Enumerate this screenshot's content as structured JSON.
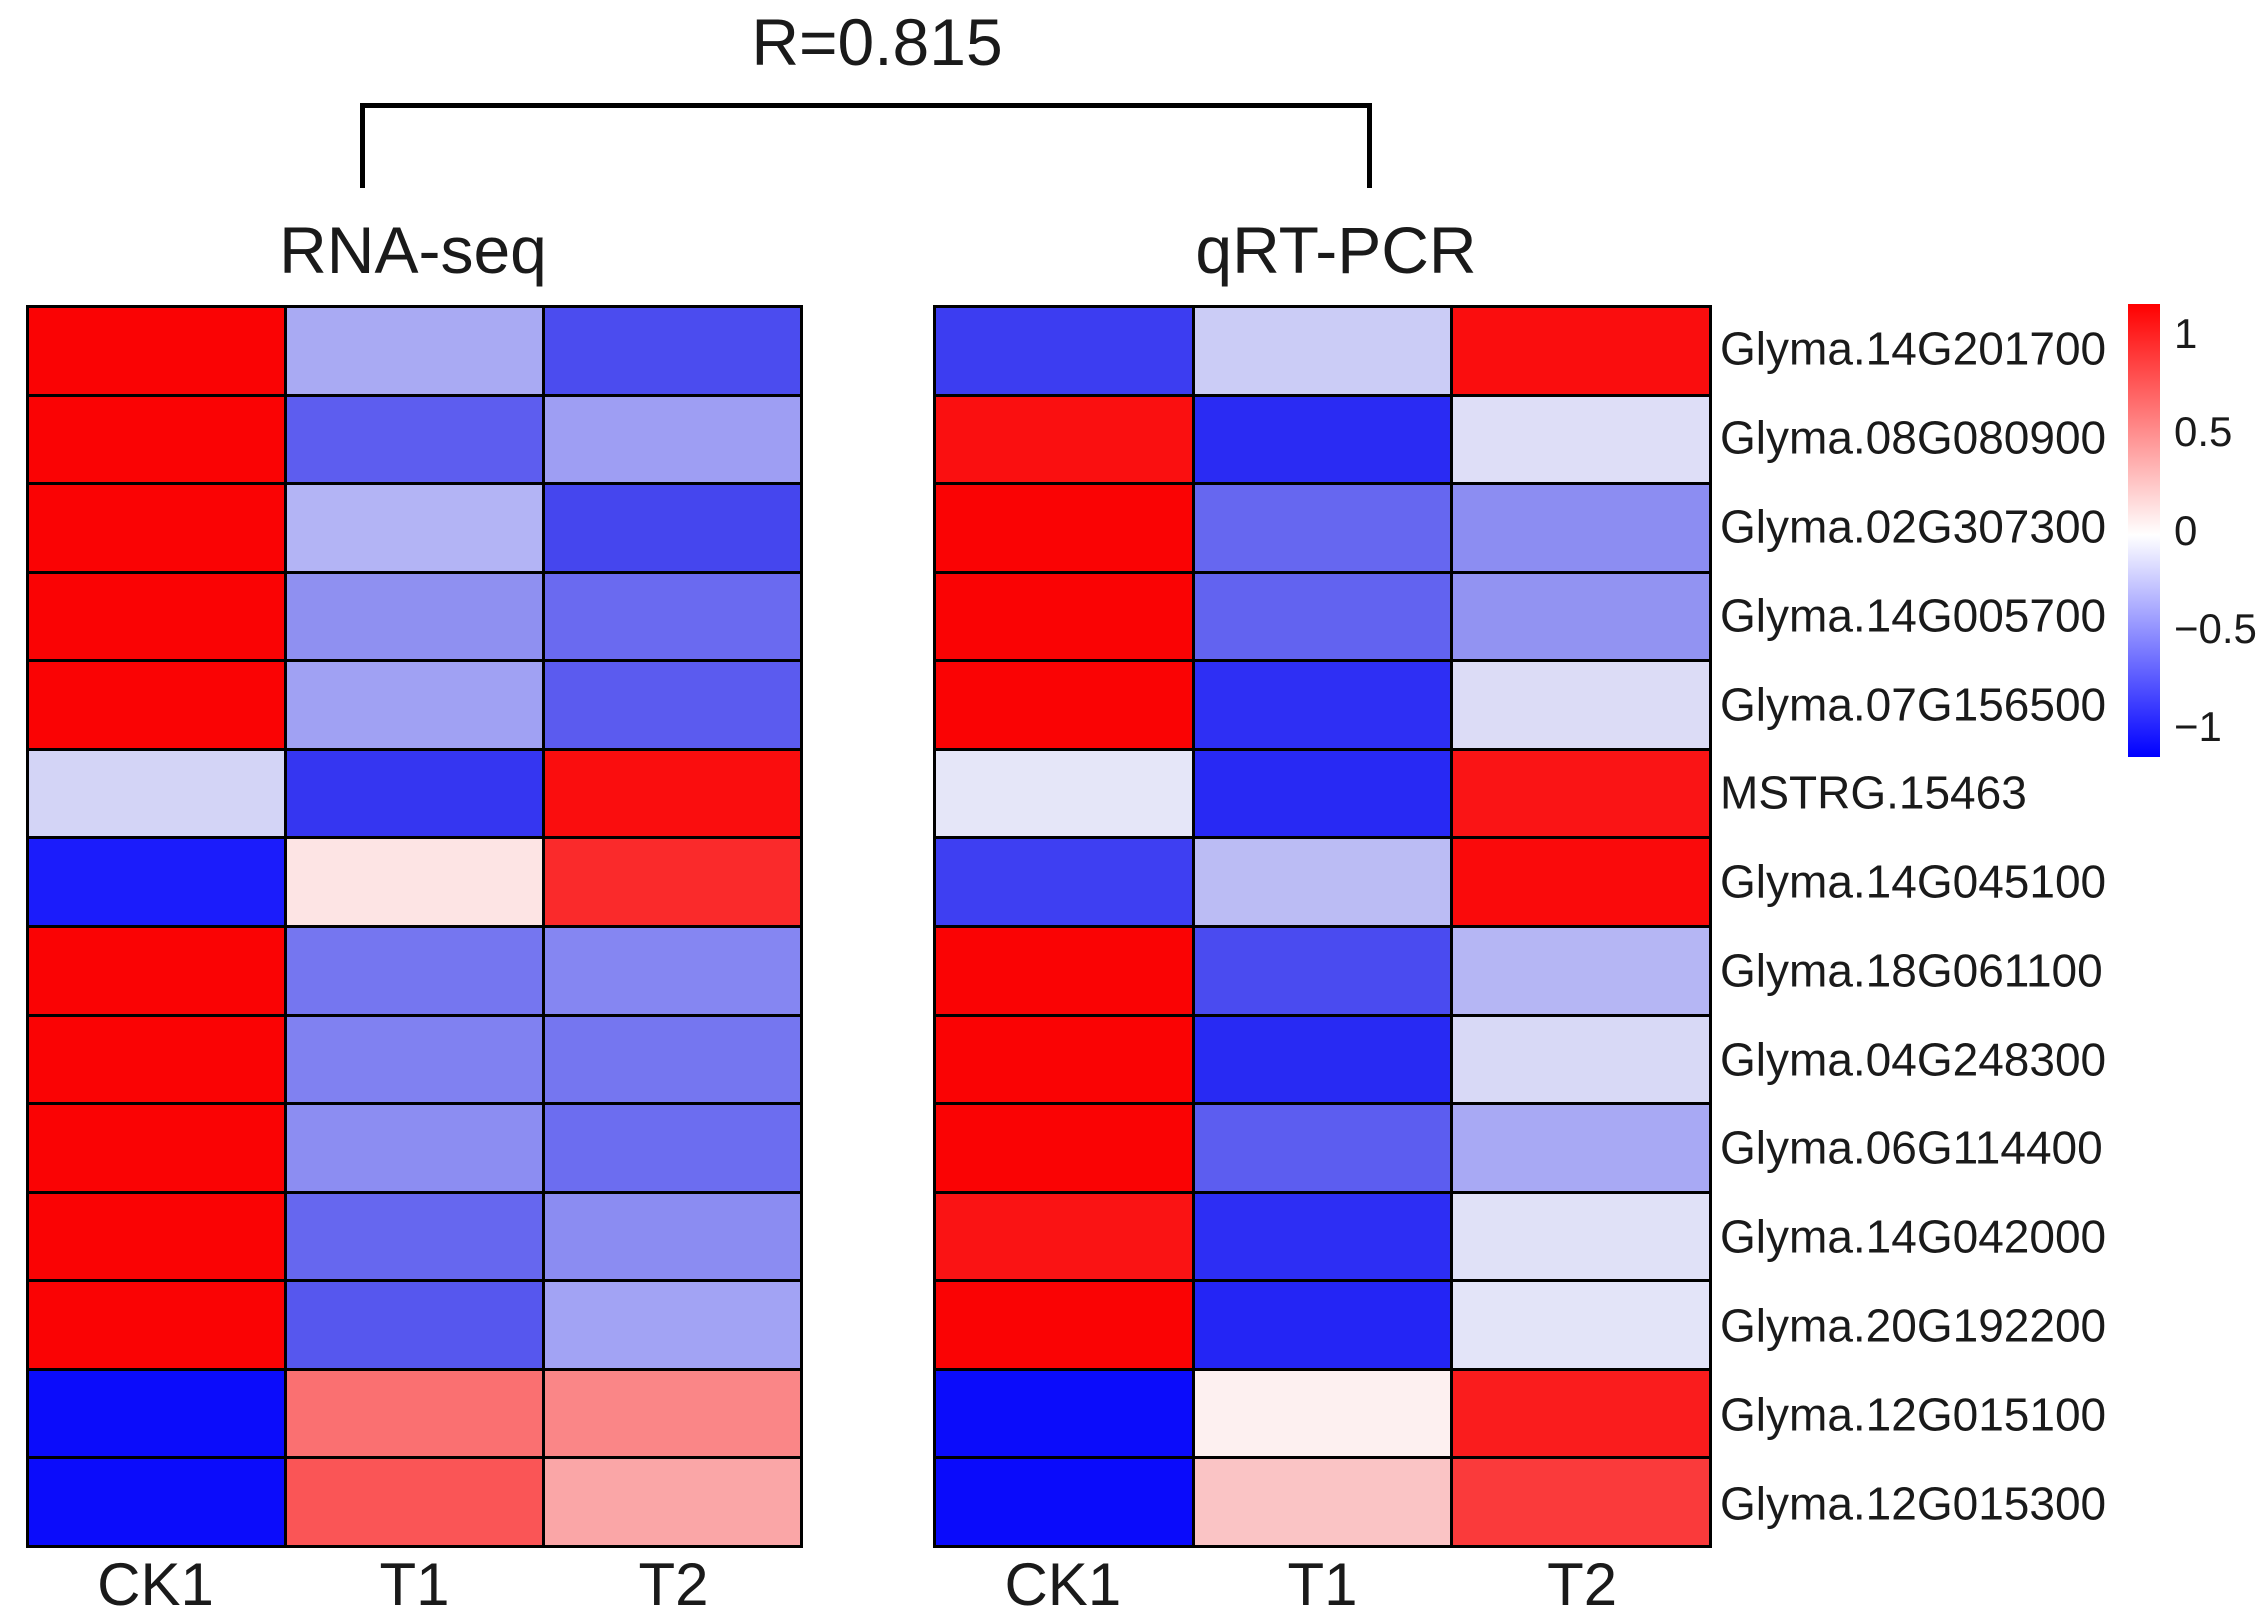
{
  "title": "R=0.815",
  "panels": [
    {
      "label": "RNA-seq",
      "columns": [
        "CK1",
        "T1",
        "T2"
      ]
    },
    {
      "label": "qRT-PCR",
      "columns": [
        "CK1",
        "T1",
        "T2"
      ]
    }
  ],
  "genes": [
    "Glyma.14G201700",
    "Glyma.08G080900",
    "Glyma.02G307300",
    "Glyma.14G005700",
    "Glyma.07G156500",
    "MSTRG.15463",
    "Glyma.14G045100",
    "Glyma.18G061100",
    "Glyma.04G248300",
    "Glyma.06G114400",
    "Glyma.14G042000",
    "Glyma.20G192200",
    "Glyma.12G015100",
    "Glyma.12G015300"
  ],
  "colorbar": {
    "top_color": "#ff0000",
    "mid_color": "#ffffff",
    "bottom_color": "#0000ff",
    "vmax": 1.15,
    "vmin": -1.15,
    "ticks": [
      {
        "label": "1",
        "value": 1
      },
      {
        "label": "0.5",
        "value": 0.5
      },
      {
        "label": "0",
        "value": 0
      },
      {
        "label": "−0.5",
        "value": -0.5
      },
      {
        "label": "−1",
        "value": -1
      }
    ]
  },
  "chart_data": {
    "type": "heatmap",
    "title": "R=0.815",
    "correlation_annotation": "R=0.815",
    "columns": [
      "CK1",
      "T1",
      "T2"
    ],
    "rows": [
      "Glyma.14G201700",
      "Glyma.08G080900",
      "Glyma.02G307300",
      "Glyma.14G005700",
      "Glyma.07G156500",
      "MSTRG.15463",
      "Glyma.14G045100",
      "Glyma.18G061100",
      "Glyma.04G248300",
      "Glyma.06G114400",
      "Glyma.14G042000",
      "Glyma.20G192200",
      "Glyma.12G015100",
      "Glyma.12G015300"
    ],
    "scale": {
      "min": -1,
      "max": 1,
      "tick_labels": [
        "1",
        "0.5",
        "0",
        "−0.5",
        "−1"
      ],
      "colormap": "blue-white-red",
      "legend_position": "right"
    },
    "series": [
      {
        "name": "RNA-seq",
        "values": [
          [
            1.1,
            -0.39,
            -0.81
          ],
          [
            1.1,
            -0.73,
            -0.44
          ],
          [
            1.1,
            -0.34,
            -0.84
          ],
          [
            1.1,
            -0.5,
            -0.67
          ],
          [
            1.1,
            -0.43,
            -0.74
          ],
          [
            -0.2,
            -0.91,
            1.09
          ],
          [
            -1.03,
            0.12,
            0.96
          ],
          [
            1.1,
            -0.62,
            -0.55
          ],
          [
            1.1,
            -0.57,
            -0.62
          ],
          [
            1.1,
            -0.52,
            -0.66
          ],
          [
            1.1,
            -0.69,
            -0.52
          ],
          [
            1.1,
            -0.76,
            -0.42
          ],
          [
            -1.1,
            0.64,
            0.55
          ],
          [
            -1.1,
            0.77,
            0.4
          ]
        ],
        "cell_colors": [
          [
            "#fa0304",
            "#a9aaf3",
            "#4b4cef"
          ],
          [
            "#fa0304",
            "#5d5def",
            "#9e9ef3"
          ],
          [
            "#fa0304",
            "#b3b4f5",
            "#4546ee"
          ],
          [
            "#fa0304",
            "#8f90f1",
            "#6a6af0"
          ],
          [
            "#fa0304",
            "#a0a1f3",
            "#5b5bef"
          ],
          [
            "#d3d4f6",
            "#3536f1",
            "#fa0d0e"
          ],
          [
            "#1b1cfb",
            "#fde4e4",
            "#fa2a2b"
          ],
          [
            "#fa0304",
            "#7576f0",
            "#8586f2"
          ],
          [
            "#fa0304",
            "#8081f1",
            "#7576f0"
          ],
          [
            "#fa0304",
            "#8c8df2",
            "#6c6df0"
          ],
          [
            "#fa0304",
            "#6667ef",
            "#8b8cf2"
          ],
          [
            "#fa0304",
            "#5657ee",
            "#a2a3f4"
          ],
          [
            "#0b0cfb",
            "#fa7071",
            "#fa8687"
          ],
          [
            "#0b0cfb",
            "#fa5556",
            "#faa6a7"
          ]
        ]
      },
      {
        "name": "qRT-PCR",
        "values": [
          [
            -0.88,
            -0.23,
            1.09
          ],
          [
            1.08,
            -0.96,
            -0.15
          ],
          [
            1.1,
            -0.69,
            -0.52
          ],
          [
            1.1,
            -0.71,
            -0.49
          ],
          [
            1.1,
            -0.94,
            -0.16
          ],
          [
            -0.12,
            -0.97,
            1.06
          ],
          [
            -0.87,
            -0.31,
            1.08
          ],
          [
            1.1,
            -0.82,
            -0.33
          ],
          [
            1.1,
            -0.97,
            -0.18
          ],
          [
            1.1,
            -0.74,
            -0.39
          ],
          [
            1.06,
            -0.95,
            -0.14
          ],
          [
            1.1,
            -0.99,
            -0.13
          ],
          [
            -1.1,
            0.07,
            1.02
          ],
          [
            -1.1,
            0.27,
            0.89
          ]
        ],
        "cell_colors": [
          [
            "#3c3df1",
            "#cbccf6",
            "#fa0d0e"
          ],
          [
            "#fa0f10",
            "#2a2bf3",
            "#dedef7"
          ],
          [
            "#fa0304",
            "#6667f0",
            "#8c8df2"
          ],
          [
            "#fa0304",
            "#6263f0",
            "#9293f2"
          ],
          [
            "#fa0304",
            "#2e2ff4",
            "#dcdcf6"
          ],
          [
            "#e5e6f8",
            "#2829f4",
            "#fa1415"
          ],
          [
            "#3e3ff2",
            "#bbbcf4",
            "#fa0a0b"
          ],
          [
            "#fa0304",
            "#4a4bf0",
            "#b5b6f4"
          ],
          [
            "#fa0304",
            "#282af3",
            "#d8d9f6"
          ],
          [
            "#fa0304",
            "#5c5df0",
            "#a8a9f4"
          ],
          [
            "#fa1314",
            "#2d2ef4",
            "#e0e1f7"
          ],
          [
            "#fa0304",
            "#2425f5",
            "#e3e4f8"
          ],
          [
            "#0b0cfb",
            "#fdf0f0",
            "#fa1c1d"
          ],
          [
            "#0a0bfb",
            "#fac4c5",
            "#fa3a3b"
          ]
        ]
      }
    ]
  }
}
